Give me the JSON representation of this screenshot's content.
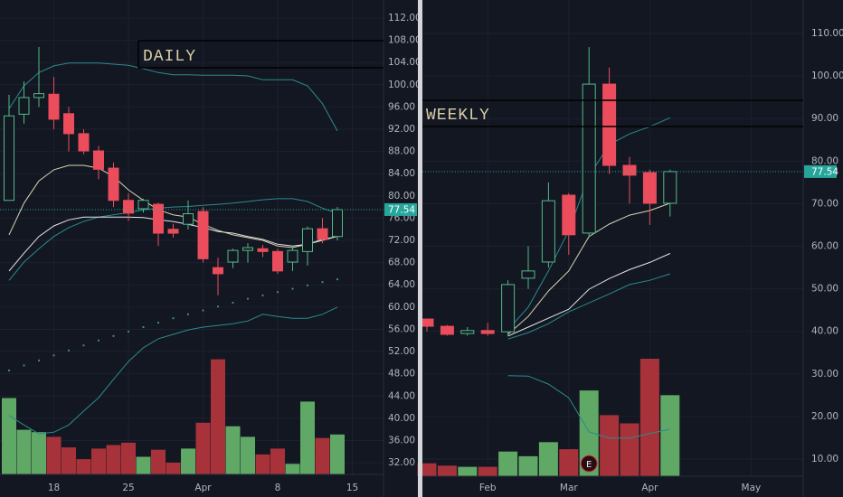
{
  "chart_data": [
    {
      "type": "candlestick",
      "title": "DAILY",
      "categories": [
        null,
        null,
        null,
        "18",
        null,
        null,
        null,
        null,
        "25",
        null,
        null,
        null,
        null,
        "Apr",
        null,
        null,
        null,
        null,
        "8",
        null,
        null,
        null,
        null,
        "15"
      ],
      "open": [
        79.2,
        94.7,
        97.7,
        98.3,
        94.8,
        91.2,
        88.1,
        85,
        79.2,
        77.7,
        78.5,
        74,
        74.9,
        77.2,
        67.1,
        68.1,
        70.2,
        70.5,
        70,
        68.1,
        70,
        74.1,
        72.7,
        null
      ],
      "high": [
        98.2,
        100.6,
        106.8,
        101.4,
        96,
        92,
        89,
        86,
        80.5,
        79.5,
        78.8,
        75,
        79.2,
        78,
        68.9,
        70.5,
        71.5,
        71.2,
        70.5,
        71,
        74.5,
        76,
        78,
        null
      ],
      "low": [
        79.2,
        93,
        96,
        92,
        88,
        87.5,
        83,
        78,
        75.5,
        77,
        71,
        72.5,
        74,
        68,
        62.1,
        67,
        68,
        69,
        66,
        66.5,
        67.5,
        71.5,
        72,
        null
      ],
      "close": [
        94.4,
        97.7,
        98.4,
        93.8,
        91.2,
        88.1,
        84.8,
        79.2,
        76.9,
        79.2,
        73.3,
        73.3,
        76.8,
        68.7,
        66,
        70.2,
        70.7,
        70,
        66.5,
        70.2,
        74.1,
        72.2,
        77.54,
        null
      ],
      "volume": [
        65,
        38,
        36,
        32,
        23,
        13,
        22,
        25,
        27,
        15,
        21,
        10,
        22,
        44,
        98,
        41,
        32,
        17,
        22,
        9,
        62,
        31,
        34,
        null
      ],
      "up_color": "#53b987",
      "down_color": "#eb4d5c",
      "volume_up_color": "#5fa865",
      "volume_down_color": "#a8323a",
      "lines": [
        {
          "color": "#2a8c8c",
          "values": [
            95.7,
            99.8,
            102.2,
            103.4,
            103.9,
            103.9,
            103.9,
            103.7,
            103.5,
            102.9,
            102.2,
            101.8,
            101.8,
            101.7,
            101.7,
            101.7,
            101.6,
            100.9,
            100.9,
            100.9,
            99.8,
            96.6,
            91.7,
            null
          ]
        },
        {
          "color": "#2a8c8c",
          "values": [
            64.8,
            68.1,
            70.5,
            72.7,
            74.3,
            75.4,
            76.2,
            76.6,
            77.0,
            77.5,
            77.8,
            78.0,
            78.1,
            78.3,
            78.5,
            78.7,
            79.0,
            79.3,
            79.5,
            79.5,
            79.0,
            77.8,
            76.9,
            null
          ]
        },
        {
          "color": "#2a8c8c",
          "values": [
            40.5,
            38.8,
            37.2,
            37.5,
            38.8,
            41.3,
            43.7,
            47.0,
            50.2,
            52.7,
            54.3,
            55.1,
            55.9,
            56.4,
            56.7,
            57.0,
            57.5,
            58.7,
            58.3,
            58.0,
            58.0,
            58.7,
            60,
            null
          ]
        },
        {
          "color": "#e6e6e6",
          "values": [
            66.5,
            69.7,
            72.7,
            74.6,
            75.7,
            76.2,
            76.2,
            76.2,
            76.2,
            76.1,
            75.7,
            75.4,
            74.9,
            74.3,
            73.6,
            73.3,
            72.7,
            72.2,
            71.3,
            71.0,
            71.3,
            72.2,
            72.7,
            null
          ]
        },
        {
          "color": "#d8d4b4",
          "values": [
            73,
            78.7,
            82.7,
            84.7,
            85.5,
            85.5,
            85,
            83.5,
            81.1,
            79.2,
            77.5,
            76.6,
            76.2,
            74.9,
            73.8,
            73,
            72.5,
            72.0,
            71,
            70.7,
            71.3,
            72,
            72.7,
            null
          ]
        }
      ],
      "dots": {
        "color": "#3f8a8a",
        "values": [
          48.6,
          49.5,
          50.4,
          51.3,
          52.2,
          53.1,
          54,
          54.8,
          55.6,
          56.4,
          57.2,
          58,
          58.7,
          59.4,
          60.1,
          60.8,
          61.5,
          62.1,
          62.7,
          63.3,
          63.9,
          64.5,
          65,
          null
        ]
      },
      "ylim": [
        29.9,
        115.25
      ],
      "yticks": [
        {
          "value": 32,
          "label": "32.00"
        },
        {
          "value": 36,
          "label": "36.00"
        },
        {
          "value": 40,
          "label": "40.00"
        },
        {
          "value": 44,
          "label": "44.00"
        },
        {
          "value": 48,
          "label": "48.00"
        },
        {
          "value": 52,
          "label": "52.00"
        },
        {
          "value": 56,
          "label": "56.00"
        },
        {
          "value": 60,
          "label": "60.00"
        },
        {
          "value": 64,
          "label": "64.00"
        },
        {
          "value": 68,
          "label": "68.00"
        },
        {
          "value": 72,
          "label": "72.00"
        },
        {
          "value": 76,
          "label": "76.00"
        },
        {
          "value": 80,
          "label": "80.00"
        },
        {
          "value": 84,
          "label": "84.00"
        },
        {
          "value": 88,
          "label": "88.00"
        },
        {
          "value": 92,
          "label": "92.00"
        },
        {
          "value": 96,
          "label": "96.00"
        },
        {
          "value": 100,
          "label": "100.00"
        },
        {
          "value": 104,
          "label": "104.00"
        },
        {
          "value": 108,
          "label": "108.00"
        },
        {
          "value": 112,
          "label": "112.00"
        }
      ],
      "volume_ylim": [
        0,
        100
      ],
      "last_price": 77.54,
      "last_price_color": "#26a69a"
    },
    {
      "type": "candlestick",
      "title": "WEEKLY",
      "categories": [
        null,
        null,
        null,
        "Feb",
        null,
        null,
        null,
        "Mar",
        null,
        null,
        null,
        "Apr",
        null,
        null,
        null,
        null,
        "May"
      ],
      "open": [
        42.9,
        41.2,
        39.5,
        40.2,
        39.9,
        52.5,
        56.3,
        72,
        63.1,
        98.1,
        79,
        77.3,
        70.1,
        null,
        null,
        null,
        null
      ],
      "high": [
        43,
        41.5,
        41,
        42,
        52,
        60,
        75,
        72.5,
        106.8,
        102,
        81,
        78,
        78,
        null,
        null,
        null,
        null
      ],
      "low": [
        40,
        39,
        39,
        39,
        39,
        50,
        55,
        58,
        62,
        77,
        70,
        65,
        67,
        null,
        null,
        null,
        null
      ],
      "close": [
        41.2,
        39.3,
        40.2,
        39.5,
        51,
        54.2,
        70.7,
        62.7,
        98.1,
        79,
        76.7,
        70.1,
        77.54,
        null,
        null,
        null,
        null
      ],
      "volume": [
        11,
        9,
        8,
        8,
        21,
        17,
        29,
        23,
        73,
        52,
        45,
        100,
        69,
        null,
        null,
        null,
        null
      ],
      "up_color": "#53b987",
      "down_color": "#eb4d5c",
      "volume_up_color": "#5fa865",
      "volume_down_color": "#a8323a",
      "lines": [
        {
          "color": "#2a8c8c",
          "values": [
            null,
            null,
            null,
            null,
            40.4,
            45.7,
            54.2,
            63.7,
            76.5,
            83.9,
            86.4,
            88.1,
            90.2,
            null,
            null,
            null,
            null
          ]
        },
        {
          "color": "#2a8c8c",
          "values": [
            null,
            null,
            null,
            null,
            29.6,
            29.5,
            27.6,
            24.4,
            16.4,
            14.9,
            14.9,
            16,
            17,
            null,
            null,
            null,
            null
          ]
        },
        {
          "color": "#2a8c8c",
          "values": [
            null,
            null,
            null,
            null,
            38.2,
            39.7,
            41.8,
            44.6,
            46.7,
            48.8,
            51,
            52,
            53.5,
            null,
            null,
            null,
            null
          ]
        },
        {
          "color": "#e6e6e6",
          "values": [
            null,
            null,
            null,
            null,
            38.9,
            41,
            43.1,
            45.2,
            49.9,
            52.4,
            54.5,
            56.2,
            58.3,
            null,
            null,
            null,
            null
          ]
        },
        {
          "color": "#d8d4b4",
          "values": [
            null,
            null,
            null,
            null,
            39.3,
            43.5,
            49.5,
            54.2,
            62.3,
            65.2,
            67.3,
            68.4,
            70.1,
            null,
            null,
            null,
            null
          ]
        }
      ],
      "events": [
        {
          "label": "E",
          "at": 8
        }
      ],
      "ylim": [
        5.97,
        117.86
      ],
      "yticks": [
        {
          "value": 10,
          "label": "10.00"
        },
        {
          "value": 20,
          "label": "20.00"
        },
        {
          "value": 30,
          "label": "30.00"
        },
        {
          "value": 40,
          "label": "40.00"
        },
        {
          "value": 50,
          "label": "50.00"
        },
        {
          "value": 60,
          "label": "60.00"
        },
        {
          "value": 70,
          "label": "70.00"
        },
        {
          "value": 80,
          "label": "80.00"
        },
        {
          "value": 90,
          "label": "90.00"
        },
        {
          "value": 100,
          "label": "100.00"
        },
        {
          "value": 110,
          "label": "110.00"
        }
      ],
      "volume_ylim": [
        0,
        100
      ],
      "last_price": 77.54,
      "last_price_color": "#26a69a"
    }
  ]
}
